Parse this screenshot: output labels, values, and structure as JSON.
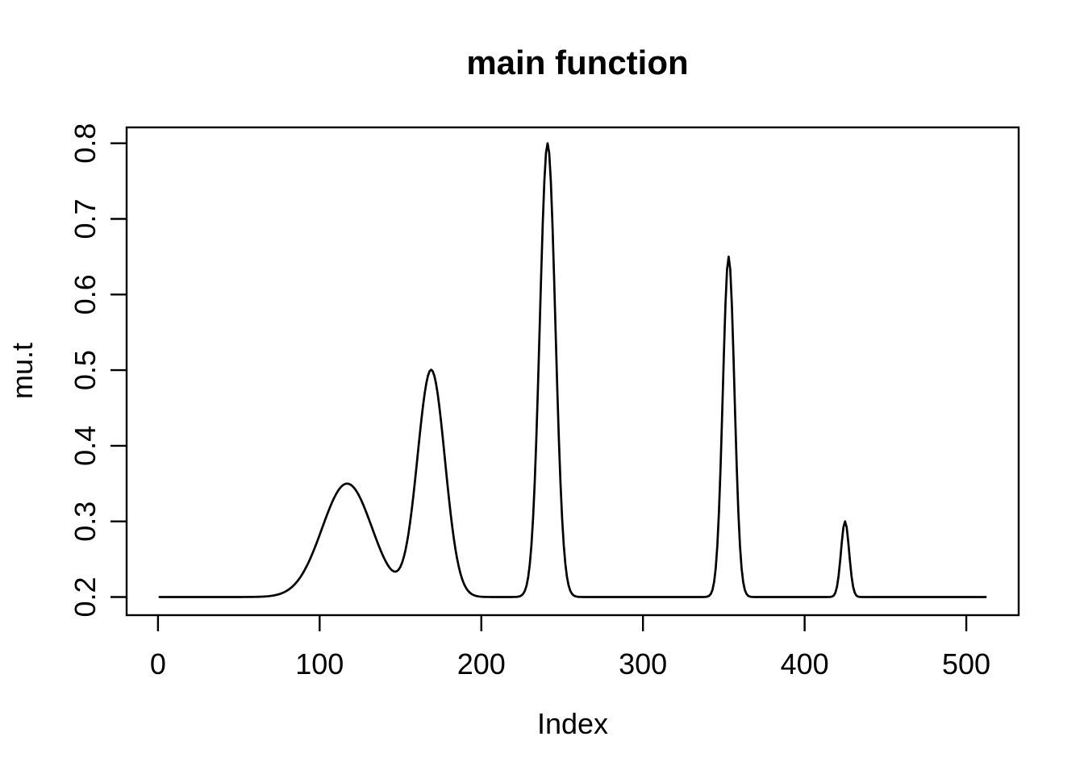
{
  "figure": {
    "background": "#ffffff",
    "axis_color": "#000000"
  },
  "chart_data": {
    "type": "line",
    "title": "main function",
    "xlabel": "Index",
    "ylabel": "mu.t",
    "grid": false,
    "legend": null,
    "line_color": "#000000",
    "x_ticks": [
      {
        "value": 0,
        "label": "0"
      },
      {
        "value": 100,
        "label": "100"
      },
      {
        "value": 200,
        "label": "200"
      },
      {
        "value": 300,
        "label": "300"
      },
      {
        "value": 400,
        "label": "400"
      },
      {
        "value": 500,
        "label": "500"
      }
    ],
    "y_ticks": [
      {
        "value": 0.2,
        "label": "0.2"
      },
      {
        "value": 0.3,
        "label": "0.3"
      },
      {
        "value": 0.4,
        "label": "0.4"
      },
      {
        "value": 0.5,
        "label": "0.5"
      },
      {
        "value": 0.6,
        "label": "0.6"
      },
      {
        "value": 0.7,
        "label": "0.7"
      },
      {
        "value": 0.8,
        "label": "0.8"
      }
    ],
    "xlim": [
      -19.4,
      532.4
    ],
    "ylim": [
      0.176,
      0.821
    ],
    "series": [
      {
        "name": "mu.t",
        "model": "baseline_plus_gaussian_bumps",
        "formula": "y(t) = 0.2 + sum_i h_i * exp(-(t - c_i)^2 / (2 * s_i^2)), t = 1..512",
        "baseline": 0.2,
        "n_points": 512,
        "components": [
          {
            "center": 117,
            "height": 0.15,
            "sd": 15.5,
            "peak_y": 0.35
          },
          {
            "center": 169,
            "height": 0.3,
            "sd": 8.5,
            "peak_y": 0.5
          },
          {
            "center": 241,
            "height": 0.6,
            "sd": 4.8,
            "peak_y": 0.8
          },
          {
            "center": 353,
            "height": 0.45,
            "sd": 3.6,
            "peak_y": 0.65
          },
          {
            "center": 425,
            "height": 0.1,
            "sd": 2.5,
            "peak_y": 0.3
          }
        ]
      }
    ]
  }
}
